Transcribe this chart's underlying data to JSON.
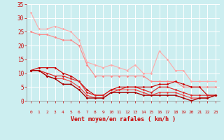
{
  "bg_color": "#cceef0",
  "grid_color": "#ffffff",
  "xlabel": "Vent moyen/en rafales ( km/h )",
  "xlabel_color": "#cc0000",
  "tick_color": "#cc0000",
  "xlim": [
    -0.5,
    23.5
  ],
  "ylim": [
    0,
    35
  ],
  "yticks": [
    0,
    5,
    10,
    15,
    20,
    25,
    30,
    35
  ],
  "xticks": [
    0,
    1,
    2,
    3,
    4,
    5,
    6,
    7,
    8,
    9,
    10,
    11,
    12,
    13,
    14,
    15,
    16,
    17,
    18,
    19,
    20,
    21,
    22,
    23
  ],
  "series": [
    {
      "x": [
        0,
        1,
        2,
        3,
        4,
        5,
        6,
        7,
        8,
        9,
        10,
        11,
        12,
        13,
        14,
        15,
        16,
        17,
        18,
        19,
        20,
        21,
        22,
        23
      ],
      "y": [
        32,
        26,
        26,
        27,
        26,
        25,
        22,
        14,
        13,
        12,
        13,
        12,
        11,
        13,
        10,
        10,
        18,
        15,
        11,
        11,
        7,
        7,
        7,
        7
      ],
      "color": "#ffaaaa",
      "lw": 0.8
    },
    {
      "x": [
        0,
        1,
        2,
        3,
        4,
        5,
        6,
        7,
        8,
        9,
        10,
        11,
        12,
        13,
        14,
        15,
        16,
        17,
        18,
        19,
        20,
        21,
        22,
        23
      ],
      "y": [
        25,
        24,
        24,
        23,
        22,
        22,
        20,
        13,
        9,
        9,
        9,
        9,
        9,
        9,
        9,
        7,
        7,
        7,
        7,
        5,
        5,
        5,
        5,
        5
      ],
      "color": "#ff8888",
      "lw": 0.8
    },
    {
      "x": [
        0,
        1,
        2,
        3,
        4,
        5,
        6,
        7,
        8,
        9,
        10,
        11,
        12,
        13,
        14,
        15,
        16,
        17,
        18,
        19,
        20,
        21,
        22,
        23
      ],
      "y": [
        11,
        12,
        12,
        12,
        10,
        9,
        7,
        4,
        2,
        2,
        4,
        5,
        5,
        5,
        5,
        5,
        6,
        6,
        7,
        6,
        5,
        5,
        2,
        2
      ],
      "color": "#cc0000",
      "lw": 0.8
    },
    {
      "x": [
        0,
        1,
        2,
        3,
        4,
        5,
        6,
        7,
        8,
        9,
        10,
        11,
        12,
        13,
        14,
        15,
        16,
        17,
        18,
        19,
        20,
        21,
        22,
        23
      ],
      "y": [
        11,
        11,
        10,
        9,
        9,
        8,
        7,
        3,
        2,
        2,
        4,
        4,
        5,
        5,
        4,
        3,
        5,
        5,
        4,
        3,
        2,
        2,
        2,
        2
      ],
      "color": "#dd2222",
      "lw": 0.8
    },
    {
      "x": [
        0,
        1,
        2,
        3,
        4,
        5,
        6,
        7,
        8,
        9,
        10,
        11,
        12,
        13,
        14,
        15,
        16,
        17,
        18,
        19,
        20,
        21,
        22,
        23
      ],
      "y": [
        11,
        11,
        9,
        8,
        8,
        7,
        5,
        2,
        1,
        1,
        3,
        4,
        4,
        4,
        3,
        2,
        3,
        3,
        3,
        2,
        1,
        1,
        1,
        2
      ],
      "color": "#ee4444",
      "lw": 0.8
    },
    {
      "x": [
        0,
        1,
        2,
        3,
        4,
        5,
        6,
        7,
        8,
        9,
        10,
        11,
        12,
        13,
        14,
        15,
        16,
        17,
        18,
        19,
        20,
        21,
        22,
        23
      ],
      "y": [
        11,
        11,
        9,
        8,
        6,
        6,
        4,
        1,
        1,
        1,
        3,
        3,
        3,
        3,
        2,
        2,
        2,
        2,
        2,
        1,
        0,
        1,
        1,
        2
      ],
      "color": "#aa0000",
      "lw": 1.0
    }
  ],
  "arrow_symbols": [
    "↖",
    "↑",
    "↖",
    "↙",
    "↗",
    "↑",
    "↙",
    "↙",
    "↖",
    "↗",
    "↙",
    "↖",
    "↑",
    "↗",
    "↑",
    "↙",
    "↗",
    "↑",
    "↗",
    "↑",
    "↑",
    "↗",
    "↑",
    "→"
  ]
}
